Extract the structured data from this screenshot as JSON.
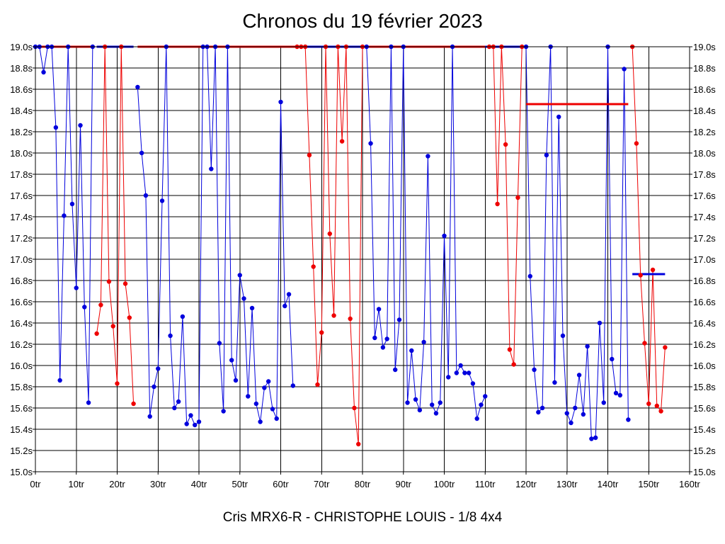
{
  "chart_data": {
    "type": "scatter",
    "title": "Chronos du 19 février 2023",
    "subtitle": "Cris MRX6-R - CHRISTOPHE LOUIS - 1/8 4x4",
    "xlabel": "",
    "ylabel": "",
    "xlim": [
      0,
      160
    ],
    "ylim": [
      15.0,
      19.0
    ],
    "x_ticks": [
      0,
      10,
      20,
      30,
      40,
      50,
      60,
      70,
      80,
      90,
      100,
      110,
      120,
      130,
      140,
      150,
      160
    ],
    "x_tick_labels": [
      "0tr",
      "10tr",
      "20tr",
      "30tr",
      "40tr",
      "50tr",
      "60tr",
      "70tr",
      "80tr",
      "90tr",
      "100tr",
      "110tr",
      "120tr",
      "130tr",
      "140tr",
      "150tr",
      "160tr"
    ],
    "y_ticks": [
      15.0,
      15.2,
      15.4,
      15.6,
      15.8,
      16.0,
      16.2,
      16.4,
      16.6,
      16.8,
      17.0,
      17.2,
      17.4,
      17.6,
      17.8,
      18.0,
      18.2,
      18.4,
      18.6,
      18.8,
      19.0
    ],
    "y_tick_labels": [
      "15.0s",
      "15.2s",
      "15.4s",
      "15.6s",
      "15.8s",
      "16.0s",
      "16.2s",
      "16.4s",
      "16.6s",
      "16.8s",
      "17.0s",
      "17.2s",
      "17.4s",
      "17.6s",
      "17.8s",
      "18.0s",
      "18.2s",
      "18.4s",
      "18.6s",
      "18.8s",
      "19.0s"
    ],
    "grid": true,
    "colors": {
      "blue": "#0000dd",
      "red": "#ee0000"
    },
    "series": [
      {
        "name": "blue-1",
        "color": "#0000dd",
        "x": [
          0,
          1,
          2,
          3,
          4,
          5,
          6,
          7,
          8,
          9,
          10,
          11,
          12,
          13,
          14
        ],
        "y": [
          19.0,
          19.0,
          18.76,
          19.0,
          19.0,
          18.24,
          15.86,
          17.41,
          19.0,
          17.52,
          16.73,
          18.26,
          16.55,
          15.65,
          19.0
        ]
      },
      {
        "name": "red-1",
        "color": "#ee0000",
        "x": [
          15,
          16,
          17,
          18,
          19,
          20,
          21,
          22,
          23,
          24
        ],
        "y": [
          16.3,
          16.57,
          19.0,
          16.79,
          16.37,
          15.83,
          19.0,
          16.77,
          16.45,
          15.64
        ]
      },
      {
        "name": "blue-2",
        "color": "#0000dd",
        "x": [
          25,
          26,
          27,
          28,
          29,
          30,
          31,
          32,
          33,
          34,
          35,
          36,
          37,
          38,
          39,
          40,
          41,
          42,
          43,
          44,
          45,
          46,
          47,
          48,
          49,
          50,
          51,
          52,
          53,
          54,
          55,
          56,
          57,
          58,
          59,
          60,
          61,
          62,
          63
        ],
        "y": [
          18.62,
          18.0,
          17.6,
          15.52,
          15.8,
          15.97,
          17.55,
          19.0,
          16.28,
          15.6,
          15.66,
          16.46,
          15.45,
          15.53,
          15.44,
          15.47,
          19.0,
          19.0,
          17.85,
          19.0,
          16.21,
          15.57,
          19.0,
          16.05,
          15.86,
          16.85,
          16.63,
          15.71,
          16.54,
          15.64,
          15.47,
          15.79,
          15.85,
          15.59,
          15.5,
          18.48,
          16.56,
          16.67,
          15.81
        ]
      },
      {
        "name": "red-2",
        "color": "#ee0000",
        "x": [
          64,
          65,
          66,
          67,
          68,
          69,
          70,
          71,
          72,
          73,
          74,
          75,
          76,
          77,
          78,
          79,
          80
        ],
        "y": [
          19.0,
          19.0,
          19.0,
          17.98,
          16.93,
          15.82,
          16.31,
          19.0,
          17.24,
          16.47,
          19.0,
          18.11,
          19.0,
          16.44,
          15.6,
          15.26,
          19.0
        ]
      },
      {
        "name": "blue-3",
        "color": "#0000dd",
        "x": [
          81,
          82,
          83,
          84,
          85,
          86,
          87,
          88,
          89,
          90,
          91,
          92,
          93,
          94,
          95,
          96,
          97,
          98,
          99,
          100,
          101,
          102,
          103,
          104,
          105,
          106,
          107,
          108,
          109,
          110
        ],
        "y": [
          19.0,
          18.09,
          16.26,
          16.53,
          16.17,
          16.25,
          19.0,
          15.96,
          16.43,
          19.0,
          15.65,
          16.14,
          15.68,
          15.58,
          16.22,
          17.97,
          15.63,
          15.55,
          15.65,
          17.22,
          15.89,
          19.0,
          15.93,
          16.0,
          15.93,
          15.93,
          15.83,
          15.5,
          15.63,
          15.71
        ]
      },
      {
        "name": "red-3",
        "color": "#ee0000",
        "x": [
          111,
          112,
          113,
          114,
          115,
          116,
          117,
          118,
          119
        ],
        "y": [
          19.0,
          19.0,
          17.52,
          19.0,
          18.08,
          16.15,
          16.01,
          17.58,
          19.0
        ]
      },
      {
        "name": "blue-4",
        "color": "#0000dd",
        "x": [
          120,
          121,
          122,
          123,
          124,
          125,
          126,
          127,
          128,
          129,
          130,
          131,
          132,
          133,
          134,
          135,
          136,
          137,
          138,
          139,
          140,
          141,
          142,
          143,
          144,
          145
        ],
        "y": [
          19.0,
          16.84,
          15.96,
          15.56,
          15.6,
          17.98,
          19.0,
          15.84,
          18.34,
          16.28,
          15.55,
          15.46,
          15.6,
          15.91,
          15.54,
          16.18,
          15.31,
          15.32,
          16.4,
          15.65,
          19.0,
          16.06,
          15.74,
          15.72,
          18.79,
          15.49
        ]
      },
      {
        "name": "red-4",
        "color": "#ee0000",
        "x": [
          146,
          147,
          148,
          149,
          150,
          151,
          152,
          153,
          154
        ],
        "y": [
          19.0,
          18.09,
          16.85,
          16.21,
          15.64,
          16.9,
          15.62,
          15.57,
          16.17
        ]
      }
    ],
    "horizontal_segments": [
      {
        "color": "#ee0000",
        "x": [
          0,
          14
        ],
        "y": 19.0
      },
      {
        "color": "#0000dd",
        "x": [
          15,
          24
        ],
        "y": 19.0
      },
      {
        "color": "#ee0000",
        "x": [
          25,
          64
        ],
        "y": 19.0
      },
      {
        "color": "#0000dd",
        "x": [
          64,
          80
        ],
        "y": 19.0
      },
      {
        "color": "#ee0000",
        "x": [
          81,
          110
        ],
        "y": 19.0
      },
      {
        "color": "#0000dd",
        "x": [
          110,
          120
        ],
        "y": 19.0
      },
      {
        "color": "#ee0000",
        "x": [
          120,
          145
        ],
        "y": 18.46
      },
      {
        "color": "#0000dd",
        "x": [
          146,
          154
        ],
        "y": 16.86
      }
    ]
  }
}
